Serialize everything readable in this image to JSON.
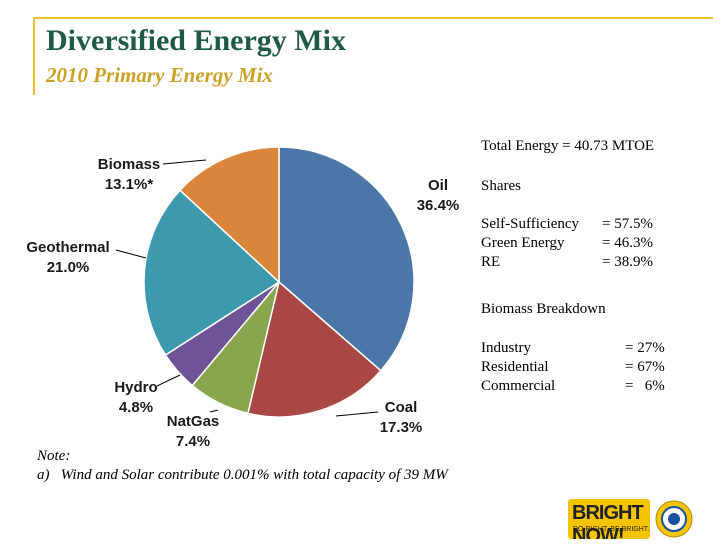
{
  "header": {
    "title": "Diversified Energy Mix",
    "subtitle": "2010 Primary Energy Mix"
  },
  "chart_data": {
    "type": "pie",
    "slices": [
      {
        "label": "Oil",
        "value": 36.4,
        "value_label": "36.4%",
        "color": "#4a76a8"
      },
      {
        "label": "Coal",
        "value": 17.3,
        "value_label": "17.3%",
        "color": "#a84744"
      },
      {
        "label": "NatGas",
        "value": 7.4,
        "value_label": "7.4%",
        "color": "#89a54e"
      },
      {
        "label": "Hydro",
        "value": 4.8,
        "value_label": "4.8%",
        "color": "#6e5496"
      },
      {
        "label": "Geothermal",
        "value": 21.0,
        "value_label": "21.0%",
        "color": "#3d9aae"
      },
      {
        "label": "Biomass",
        "value": 13.1,
        "value_label": "13.1%*",
        "color": "#d9853b"
      }
    ]
  },
  "stats": {
    "total_energy": {
      "label": "Total Energy",
      "value": "= 40.73 MTOE"
    },
    "shares_heading": "Shares",
    "shares": [
      {
        "label": "Self-Sufficiency",
        "value": "= 57.5%"
      },
      {
        "label": "Green Energy",
        "value": "= 46.3%"
      },
      {
        "label": "RE",
        "value": "= 38.9%"
      }
    ],
    "biomass_heading": "Biomass Breakdown",
    "biomass": [
      {
        "label": "Industry",
        "value": "= 27%"
      },
      {
        "label": "Residential",
        "value": "= 67%"
      },
      {
        "label": "Commercial",
        "value": "=   6%"
      }
    ]
  },
  "note": {
    "heading": "Note:",
    "text": "a)   Wind and Solar contribute 0.001% with total capacity of 39 MW"
  },
  "logos": {
    "brand_text": "BRIGHT NOW!",
    "brand_tagline": "DO RIGHT. BE BRIGHT.",
    "seal_color": "#f5c400"
  }
}
